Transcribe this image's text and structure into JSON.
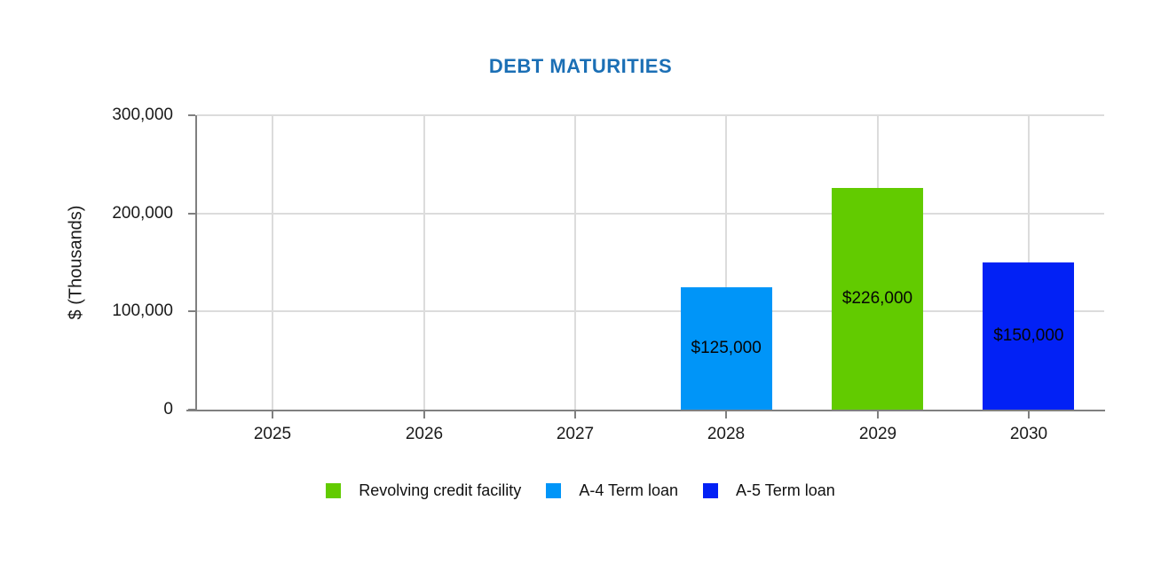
{
  "page": {
    "background": "#ffffff"
  },
  "chart_data": {
    "type": "bar",
    "title": "DEBT MATURITIES",
    "title_color": "#1b6fb5",
    "ylabel": "$ (Thousands)",
    "xlabel": "",
    "categories": [
      "2025",
      "2026",
      "2027",
      "2028",
      "2029",
      "2030"
    ],
    "series": [
      {
        "name": "Revolving credit facility",
        "color": "#62cb00",
        "category": "2029",
        "value": 226000,
        "label": "$226,000"
      },
      {
        "name": "A-4 Term loan",
        "color": "#0095f8",
        "category": "2028",
        "value": 125000,
        "label": "$125,000"
      },
      {
        "name": "A-5 Term loan",
        "color": "#0221f5",
        "category": "2030",
        "value": 150000,
        "label": "$150,000"
      }
    ],
    "ylim": [
      0,
      300000
    ],
    "ytick_step": 100000,
    "yticks": [
      {
        "label": "300,000",
        "value": 300000
      },
      {
        "label": "200,000",
        "value": 200000
      },
      {
        "label": "100,000",
        "value": 100000
      },
      {
        "label": "0",
        "value": 0
      }
    ],
    "grid": true,
    "gridline_color": "#dcdcdc",
    "axis_color": "#808080",
    "legend_position": "bottom",
    "data_label_position": "center",
    "data_label_color": "#050505"
  }
}
